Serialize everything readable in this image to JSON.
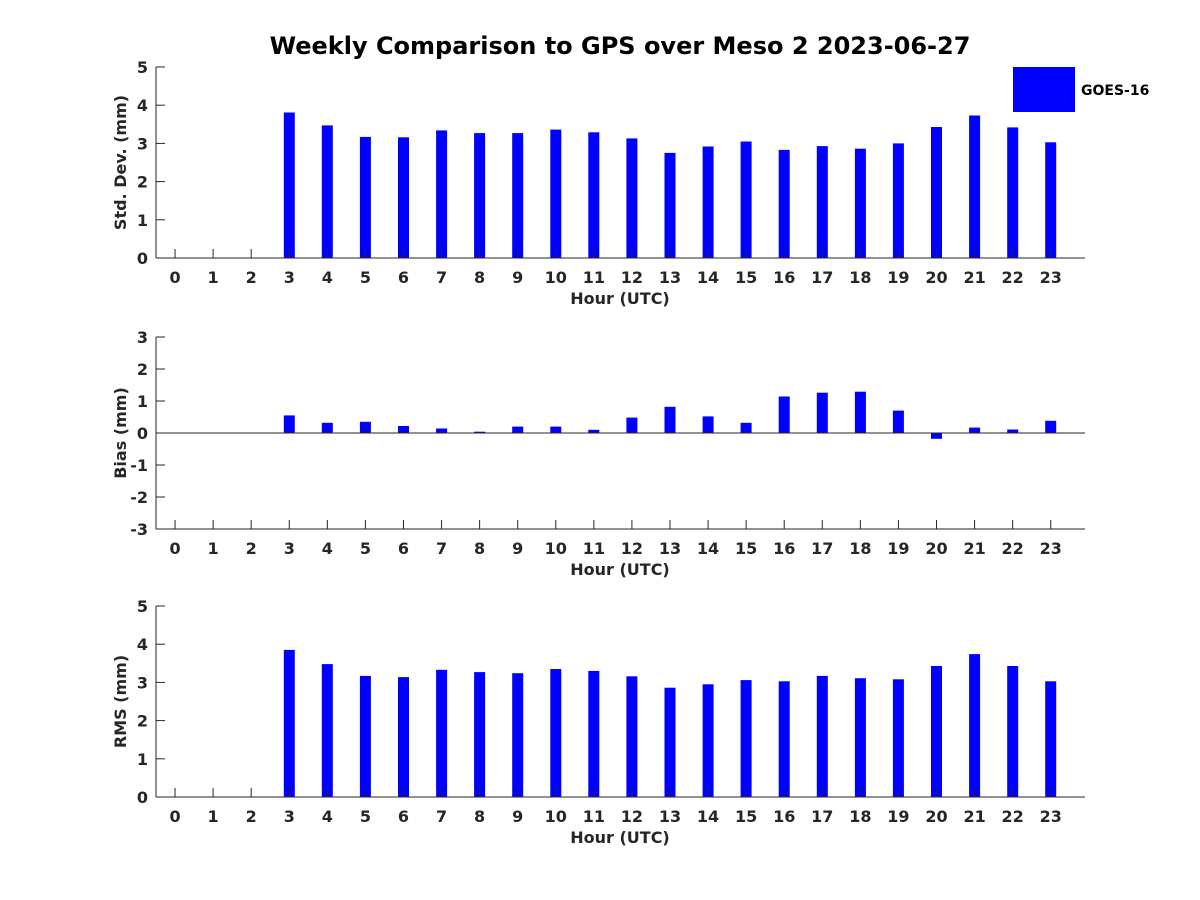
{
  "title": "Weekly Comparison to GPS over Meso 2 2023-06-27",
  "legend": {
    "label": "GOES-16",
    "color": "#0000ff",
    "placement": "top-right"
  },
  "colors": {
    "bar": "#0000ff",
    "axis": "#262626",
    "background": "#ffffff"
  },
  "chart_data": [
    {
      "type": "bar",
      "xlabel": "Hour (UTC)",
      "ylabel": "Std. Dev. (mm)",
      "ylim": [
        0,
        5
      ],
      "yticks": [
        0,
        1,
        2,
        3,
        4,
        5
      ],
      "xlim": [
        -0.5,
        23.9
      ],
      "categories": [
        0,
        1,
        2,
        3,
        4,
        5,
        6,
        7,
        8,
        9,
        10,
        11,
        12,
        13,
        14,
        15,
        16,
        17,
        18,
        19,
        20,
        21,
        22,
        23
      ],
      "series": [
        {
          "name": "GOES-16",
          "values": [
            null,
            null,
            null,
            3.81,
            3.47,
            3.17,
            3.16,
            3.34,
            3.27,
            3.27,
            3.36,
            3.29,
            3.13,
            2.75,
            2.92,
            3.05,
            2.83,
            2.93,
            2.86,
            3.0,
            3.43,
            3.73,
            3.42,
            3.03
          ]
        }
      ],
      "grid": false
    },
    {
      "type": "bar",
      "xlabel": "Hour (UTC)",
      "ylabel": "Bias (mm)",
      "ylim": [
        -3,
        3
      ],
      "yticks": [
        -3,
        -2,
        -1,
        0,
        1,
        2,
        3
      ],
      "xlim": [
        -0.5,
        23.9
      ],
      "zero_line": true,
      "categories": [
        0,
        1,
        2,
        3,
        4,
        5,
        6,
        7,
        8,
        9,
        10,
        11,
        12,
        13,
        14,
        15,
        16,
        17,
        18,
        19,
        20,
        21,
        22,
        23
      ],
      "series": [
        {
          "name": "GOES-16",
          "values": [
            null,
            null,
            null,
            0.55,
            0.32,
            0.35,
            0.22,
            0.14,
            0.04,
            0.2,
            0.2,
            0.1,
            0.48,
            0.82,
            0.52,
            0.32,
            1.14,
            1.26,
            1.29,
            0.7,
            -0.18,
            0.17,
            0.11,
            0.38
          ]
        }
      ],
      "grid": false
    },
    {
      "type": "bar",
      "xlabel": "Hour (UTC)",
      "ylabel": "RMS (mm)",
      "ylim": [
        0,
        5
      ],
      "yticks": [
        0,
        1,
        2,
        3,
        4,
        5
      ],
      "xlim": [
        -0.5,
        23.9
      ],
      "categories": [
        0,
        1,
        2,
        3,
        4,
        5,
        6,
        7,
        8,
        9,
        10,
        11,
        12,
        13,
        14,
        15,
        16,
        17,
        18,
        19,
        20,
        21,
        22,
        23
      ],
      "series": [
        {
          "name": "GOES-16",
          "values": [
            null,
            null,
            null,
            3.85,
            3.48,
            3.17,
            3.14,
            3.33,
            3.27,
            3.24,
            3.35,
            3.3,
            3.16,
            2.86,
            2.95,
            3.06,
            3.03,
            3.17,
            3.11,
            3.08,
            3.43,
            3.74,
            3.43,
            3.03
          ]
        }
      ],
      "grid": false
    }
  ]
}
